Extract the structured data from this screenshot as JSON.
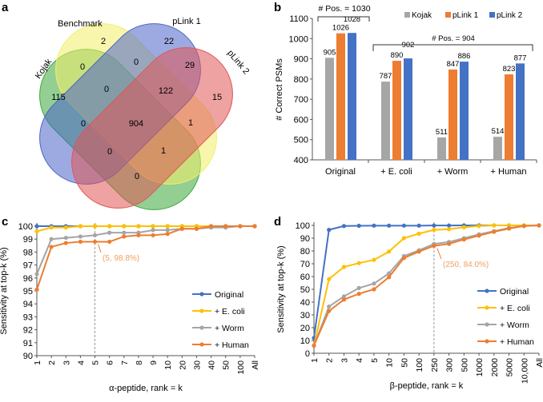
{
  "panels": {
    "a": "a",
    "b": "b",
    "c": "c",
    "d": "d"
  },
  "venn": {
    "sets": [
      {
        "name": "Kojak",
        "color": "#3aa83a"
      },
      {
        "name": "Benchmark",
        "color": "#f3ef6a"
      },
      {
        "name": "pLink 1",
        "color": "#4a64c8"
      },
      {
        "name": "pLink 2",
        "color": "#e05555"
      }
    ],
    "counts": [
      "2",
      "22",
      "0",
      "29",
      "0",
      "115",
      "0",
      "122",
      "15",
      "0",
      "904",
      "1",
      "0",
      "1",
      "0"
    ]
  },
  "chart_data": [
    {
      "type": "bar",
      "ylabel": "# Correct PSMs",
      "ylim": [
        400,
        1100
      ],
      "yticks": [
        "400",
        "500",
        "600",
        "700",
        "800",
        "900",
        "1000",
        "1100"
      ],
      "categories": [
        "Original",
        "+ E. coli",
        "+ Worm",
        "+ Human"
      ],
      "legend": "top-right",
      "series": [
        {
          "name": "Kojak",
          "color": "#a6a6a6",
          "values": [
            905,
            787,
            511,
            514
          ]
        },
        {
          "name": "pLink 1",
          "color": "#ed7d31",
          "values": [
            1026,
            890,
            847,
            823
          ]
        },
        {
          "name": "pLink 2",
          "color": "#4472c4",
          "values": [
            1028,
            902,
            886,
            877
          ]
        }
      ],
      "annotations": [
        "# Pos. = 1030",
        "# Pos. = 904"
      ]
    },
    {
      "type": "line",
      "xlabel": "α-peptide, rank = k",
      "ylabel": "Sensitivity at top-k (%)",
      "ylim": [
        90,
        100
      ],
      "yticks": [
        "90",
        "91",
        "92",
        "93",
        "94",
        "95",
        "96",
        "97",
        "98",
        "99",
        "100"
      ],
      "categories": [
        "1",
        "2",
        "3",
        "4",
        "5",
        "6",
        "7",
        "8",
        "9",
        "10",
        "20",
        "30",
        "40",
        "50",
        "100",
        "All"
      ],
      "legend": "right",
      "marker_k": 4,
      "annotation": "(5, 98.8%)",
      "series": [
        {
          "name": "Original",
          "color": "#4472c4",
          "values": [
            100,
            100,
            100,
            100,
            100,
            100,
            100,
            100,
            100,
            100,
            100,
            100,
            100,
            100,
            100,
            100
          ]
        },
        {
          "name": "+ E. coli",
          "color": "#ffc000",
          "values": [
            99.6,
            99.9,
            99.9,
            100,
            100,
            100,
            100,
            100,
            100,
            100,
            100,
            100,
            100,
            100,
            100,
            100
          ]
        },
        {
          "name": "+ Worm",
          "color": "#a5a5a5",
          "values": [
            96.3,
            99.0,
            99.1,
            99.2,
            99.3,
            99.5,
            99.5,
            99.5,
            99.7,
            99.7,
            99.8,
            99.8,
            99.9,
            99.9,
            100,
            100
          ]
        },
        {
          "name": "+ Human",
          "color": "#ed7d31",
          "values": [
            95.1,
            98.4,
            98.7,
            98.8,
            98.8,
            98.8,
            99.2,
            99.3,
            99.3,
            99.4,
            99.8,
            99.8,
            100,
            100,
            100,
            100
          ]
        }
      ]
    },
    {
      "type": "line",
      "xlabel": "β-peptide, rank = k",
      "ylabel": "Sensitivity at top-k (%)",
      "ylim": [
        0,
        100
      ],
      "yticks": [
        "0",
        "10",
        "20",
        "30",
        "40",
        "50",
        "60",
        "70",
        "80",
        "90",
        "100"
      ],
      "categories": [
        "1",
        "2",
        "3",
        "4",
        "5",
        "10",
        "50",
        "100",
        "250",
        "300",
        "500",
        "1000",
        "2000",
        "5000",
        "10,000",
        "All"
      ],
      "legend": "right",
      "marker_k": 8,
      "annotation": "(250, 84.0%)",
      "series": [
        {
          "name": "Original",
          "color": "#4472c4",
          "values": [
            12,
            96.5,
            99.5,
            99.7,
            99.8,
            99.8,
            99.8,
            99.8,
            99.9,
            99.9,
            100,
            100,
            100,
            100,
            100,
            100
          ]
        },
        {
          "name": "+ E. coli",
          "color": "#ffc000",
          "values": [
            6,
            58,
            67.5,
            70.5,
            73,
            79.5,
            90,
            93.5,
            96.5,
            97,
            98.5,
            99.5,
            100,
            100,
            100,
            100
          ]
        },
        {
          "name": "+ Worm",
          "color": "#a5a5a5",
          "values": [
            6,
            36.5,
            44.5,
            51,
            54.5,
            62.5,
            76,
            80.5,
            85.5,
            87,
            90,
            93,
            95.5,
            98,
            99.5,
            100
          ]
        },
        {
          "name": "+ Human",
          "color": "#ed7d31",
          "values": [
            6,
            33,
            42,
            46.5,
            50,
            59.5,
            74.5,
            79.5,
            84,
            85.5,
            89,
            92,
            95,
            97.5,
            99.5,
            100
          ]
        }
      ]
    }
  ]
}
